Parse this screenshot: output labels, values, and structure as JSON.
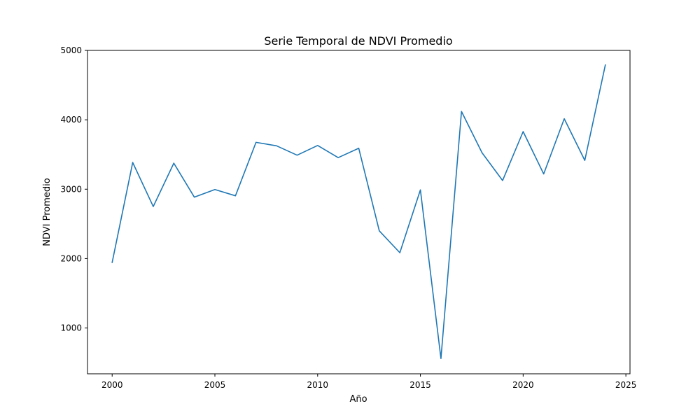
{
  "chart_data": {
    "type": "line",
    "title": "Serie Temporal de NDVI Promedio",
    "xlabel": "Año",
    "ylabel": "NDVI Promedio",
    "xlim": [
      1998.8,
      2025.2
    ],
    "ylim": [
      340,
      5000
    ],
    "xticks": [
      2000,
      2005,
      2010,
      2015,
      2020,
      2025
    ],
    "yticks": [
      1000,
      2000,
      3000,
      4000,
      5000
    ],
    "grid": false,
    "series": [
      {
        "color": "#1f77b4",
        "x": [
          2000,
          2001,
          2002,
          2003,
          2004,
          2005,
          2006,
          2007,
          2008,
          2009,
          2010,
          2011,
          2012,
          2013,
          2014,
          2015,
          2016,
          2017,
          2018,
          2019,
          2020,
          2021,
          2022,
          2023,
          2024
        ],
        "y": [
          1945,
          3385,
          2750,
          3375,
          2885,
          2995,
          2905,
          3675,
          3625,
          3490,
          3630,
          3455,
          3590,
          2400,
          2085,
          2990,
          560,
          4120,
          3525,
          3125,
          3830,
          3220,
          4015,
          3415,
          4790
        ]
      }
    ]
  }
}
